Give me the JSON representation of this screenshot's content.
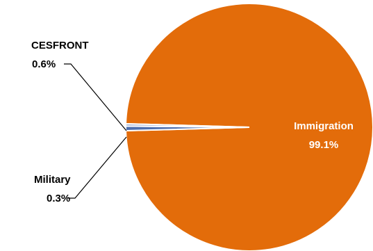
{
  "chart_data": {
    "type": "pie",
    "title": "",
    "slices": [
      {
        "label": "Immigration",
        "value": 99.1,
        "value_label": "99.1%",
        "color": "#e36c0a"
      },
      {
        "label": "CESFRONT",
        "value": 0.6,
        "value_label": "0.6%",
        "color": "#4f6fae"
      },
      {
        "label": "Military",
        "value": 0.3,
        "value_label": "0.3%",
        "color": "#9aa9cf"
      }
    ],
    "legend": "none"
  },
  "colors": {
    "title": "#2f6fbf",
    "label_on_slice": "#ffffff",
    "label_outside": "#000000"
  }
}
